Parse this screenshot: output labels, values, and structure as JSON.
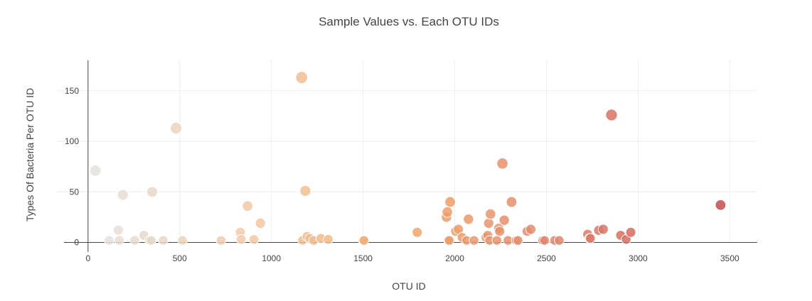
{
  "chart_data": {
    "type": "scatter",
    "title": "Sample Values vs. Each OTU IDs",
    "xlabel": "OTU ID",
    "ylabel": "Types Of Bacteria Per OTU ID",
    "xlim": [
      -170,
      3650
    ],
    "ylim": [
      -20,
      180
    ],
    "xticks": [
      "0",
      "500",
      "1000",
      "1500",
      "2000",
      "2500",
      "3000",
      "3500"
    ],
    "yticks": [
      "0",
      "50",
      "100",
      "150"
    ],
    "grid": true,
    "legend": "none",
    "colorscale": [
      "#e4e1de",
      "#f2c8a4",
      "#f0a76a",
      "#e0846f",
      "#c84a4c"
    ],
    "points": [
      {
        "x": 40,
        "y": 71
      },
      {
        "x": 115,
        "y": 2
      },
      {
        "x": 165,
        "y": 12
      },
      {
        "x": 170,
        "y": 2
      },
      {
        "x": 190,
        "y": 47
      },
      {
        "x": 255,
        "y": 2
      },
      {
        "x": 305,
        "y": 7
      },
      {
        "x": 335,
        "y": 2
      },
      {
        "x": 345,
        "y": 2
      },
      {
        "x": 350,
        "y": 50
      },
      {
        "x": 410,
        "y": 2
      },
      {
        "x": 480,
        "y": 113
      },
      {
        "x": 515,
        "y": 2
      },
      {
        "x": 725,
        "y": 2
      },
      {
        "x": 830,
        "y": 10
      },
      {
        "x": 835,
        "y": 3
      },
      {
        "x": 870,
        "y": 36
      },
      {
        "x": 905,
        "y": 3
      },
      {
        "x": 940,
        "y": 19
      },
      {
        "x": 1165,
        "y": 163
      },
      {
        "x": 1170,
        "y": 2
      },
      {
        "x": 1185,
        "y": 51
      },
      {
        "x": 1195,
        "y": 6
      },
      {
        "x": 1210,
        "y": 4
      },
      {
        "x": 1230,
        "y": 2
      },
      {
        "x": 1270,
        "y": 4
      },
      {
        "x": 1310,
        "y": 3
      },
      {
        "x": 1500,
        "y": 2
      },
      {
        "x": 1505,
        "y": 2
      },
      {
        "x": 1795,
        "y": 10
      },
      {
        "x": 1955,
        "y": 25
      },
      {
        "x": 1960,
        "y": 30
      },
      {
        "x": 1965,
        "y": 2
      },
      {
        "x": 1970,
        "y": 2
      },
      {
        "x": 1975,
        "y": 40
      },
      {
        "x": 2005,
        "y": 11
      },
      {
        "x": 2020,
        "y": 13
      },
      {
        "x": 2040,
        "y": 5
      },
      {
        "x": 2065,
        "y": 2
      },
      {
        "x": 2075,
        "y": 23
      },
      {
        "x": 2105,
        "y": 2
      },
      {
        "x": 2170,
        "y": 5
      },
      {
        "x": 2180,
        "y": 7
      },
      {
        "x": 2185,
        "y": 19
      },
      {
        "x": 2190,
        "y": 2
      },
      {
        "x": 2195,
        "y": 28
      },
      {
        "x": 2230,
        "y": 2
      },
      {
        "x": 2240,
        "y": 14
      },
      {
        "x": 2245,
        "y": 11
      },
      {
        "x": 2260,
        "y": 78
      },
      {
        "x": 2270,
        "y": 22
      },
      {
        "x": 2290,
        "y": 2
      },
      {
        "x": 2310,
        "y": 40
      },
      {
        "x": 2335,
        "y": 2
      },
      {
        "x": 2345,
        "y": 2
      },
      {
        "x": 2395,
        "y": 11
      },
      {
        "x": 2415,
        "y": 13
      },
      {
        "x": 2480,
        "y": 2
      },
      {
        "x": 2490,
        "y": 2
      },
      {
        "x": 2545,
        "y": 2
      },
      {
        "x": 2570,
        "y": 2
      },
      {
        "x": 2725,
        "y": 8
      },
      {
        "x": 2735,
        "y": 4
      },
      {
        "x": 2740,
        "y": 4
      },
      {
        "x": 2785,
        "y": 12
      },
      {
        "x": 2810,
        "y": 13
      },
      {
        "x": 2855,
        "y": 126
      },
      {
        "x": 2905,
        "y": 7
      },
      {
        "x": 2935,
        "y": 3
      },
      {
        "x": 2960,
        "y": 10
      },
      {
        "x": 3450,
        "y": 37
      }
    ]
  }
}
